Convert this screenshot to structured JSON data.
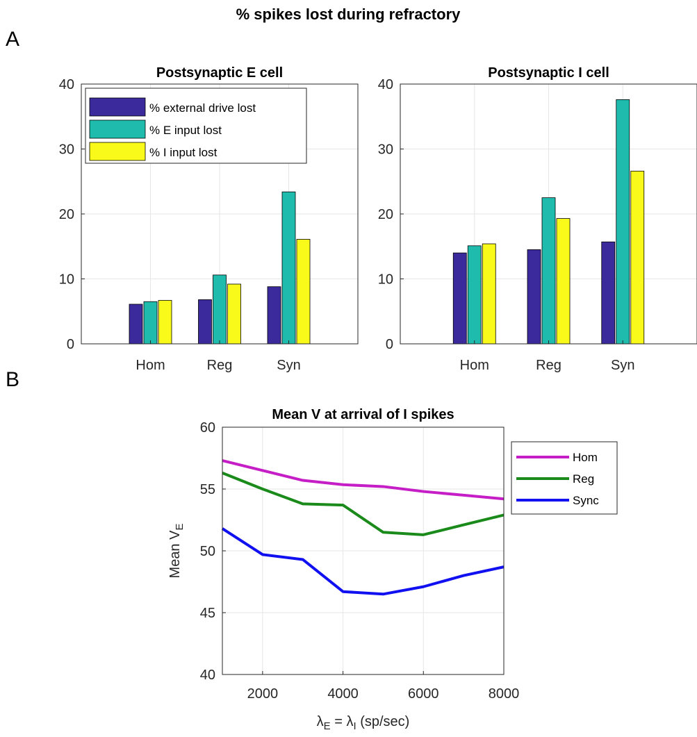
{
  "figure": {
    "title": "% spikes lost during refractory",
    "panel_a_label": "A",
    "panel_b_label": "B"
  },
  "chart_data": [
    {
      "type": "bar",
      "title": "Postsynaptic E cell",
      "xlabel": "",
      "ylabel": "",
      "categories": [
        "Hom",
        "Reg",
        "Syn"
      ],
      "series": [
        {
          "name": "% external drive lost",
          "color": "#3a2a9b",
          "values": [
            6.1,
            6.8,
            8.8
          ]
        },
        {
          "name": "% E input lost",
          "color": "#1fbcae",
          "values": [
            6.5,
            10.6,
            23.4
          ]
        },
        {
          "name": "% I input lost",
          "color": "#f9f91a",
          "values": [
            6.7,
            9.2,
            16.1
          ]
        }
      ],
      "ylim": [
        0,
        40
      ],
      "yticks": [
        0,
        10,
        20,
        30,
        40
      ],
      "grid": true,
      "legend": "top-left"
    },
    {
      "type": "bar",
      "title": "Postsynaptic I cell",
      "xlabel": "",
      "ylabel": "",
      "categories": [
        "Hom",
        "Reg",
        "Syn"
      ],
      "series": [
        {
          "name": "% external drive lost",
          "color": "#3a2a9b",
          "values": [
            14.0,
            14.5,
            15.7
          ]
        },
        {
          "name": "% E input lost",
          "color": "#1fbcae",
          "values": [
            15.1,
            22.5,
            37.6
          ]
        },
        {
          "name": "% I input lost",
          "color": "#f9f91a",
          "values": [
            15.4,
            19.3,
            26.6
          ]
        }
      ],
      "ylim": [
        0,
        40
      ],
      "yticks": [
        0,
        10,
        20,
        30,
        40
      ],
      "grid": true,
      "legend": "none"
    },
    {
      "type": "line",
      "title": "Mean V at arrival of I spikes",
      "xlabel": "λ_E = λ_I (sp/sec)",
      "ylabel": "Mean V_E",
      "x": [
        1000,
        2000,
        3000,
        4000,
        5000,
        6000,
        7000,
        8000
      ],
      "series": [
        {
          "name": "Hom",
          "color": "#c61ec6",
          "values": [
            57.3,
            56.5,
            55.7,
            55.35,
            55.2,
            54.8,
            54.5,
            54.2
          ]
        },
        {
          "name": "Reg",
          "color": "#1a8a1a",
          "values": [
            56.3,
            55.0,
            53.8,
            53.7,
            51.5,
            51.3,
            52.1,
            52.9
          ]
        },
        {
          "name": "Sync",
          "color": "#1010f0",
          "values": [
            51.8,
            49.7,
            49.3,
            46.7,
            46.5,
            47.1,
            48.0,
            48.7
          ]
        }
      ],
      "xlim": [
        1000,
        8000
      ],
      "ylim": [
        40,
        60
      ],
      "xticks": [
        2000,
        4000,
        6000,
        8000
      ],
      "yticks": [
        40,
        45,
        50,
        55,
        60
      ],
      "grid": true,
      "legend": "outside-right"
    }
  ]
}
